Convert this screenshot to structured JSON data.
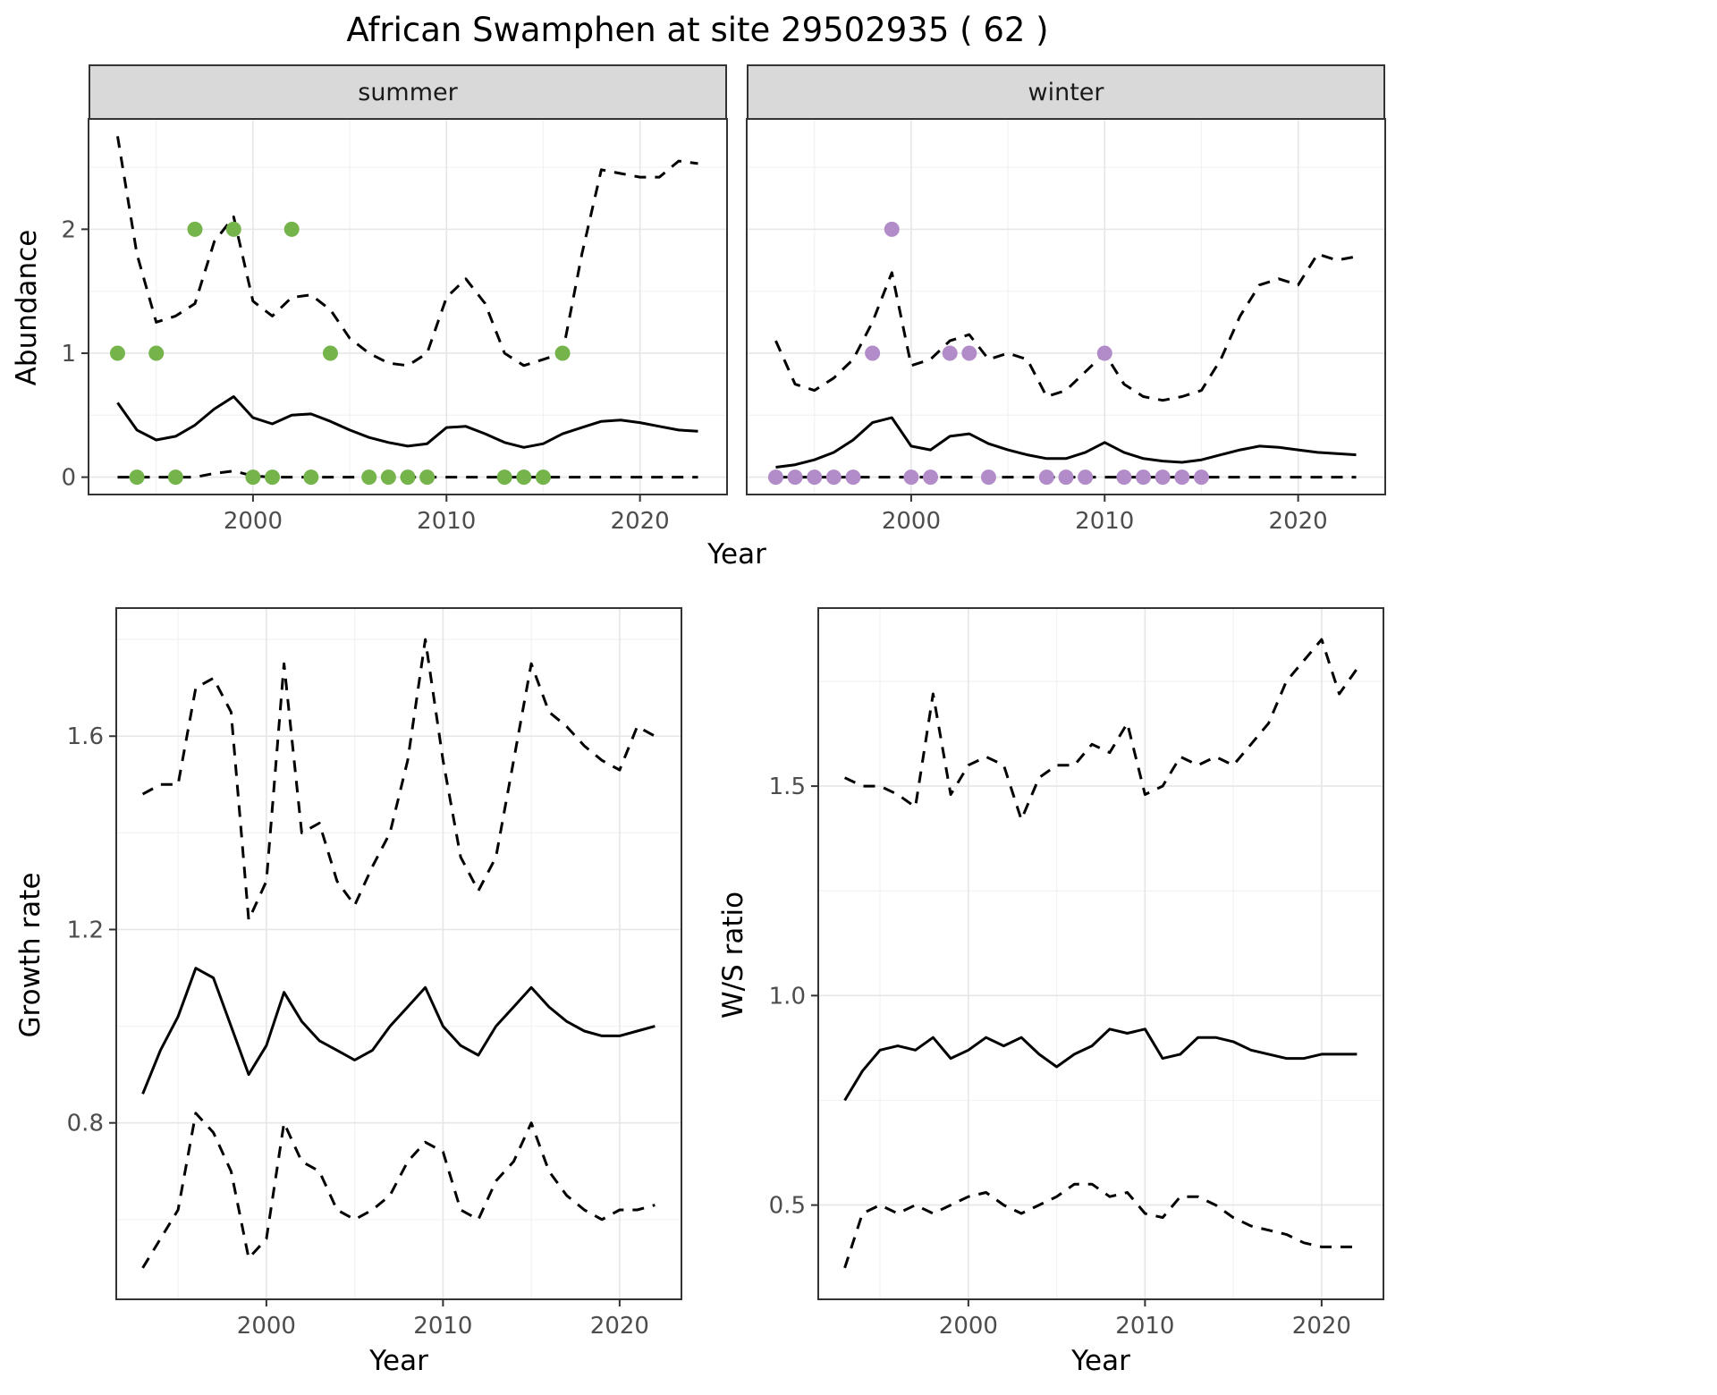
{
  "title": "African Swamphen at site 29502935 ( 62 )",
  "colors": {
    "line": "#000000",
    "summer_points": "#75b34b",
    "winter_points": "#b28bc9",
    "strip_bg": "#d9d9d9",
    "panel_border": "#333333",
    "grid_major": "#e6e6e6",
    "grid_minor": "#f2f2f2",
    "tick_text": "#4d4d4d"
  },
  "chart_data": [
    {
      "id": "abundance-summer",
      "type": "line",
      "facet_label": "summer",
      "xlabel": "Year",
      "ylabel": "Abundance",
      "xlim": [
        1991.5,
        2024.5
      ],
      "ylim": [
        -0.14,
        2.89
      ],
      "xticks": [
        2000,
        2010,
        2020
      ],
      "xtick_labels": [
        "2000",
        "2010",
        "2020"
      ],
      "xticks_minor": [
        1995,
        2005,
        2015
      ],
      "yticks": [
        0,
        1,
        2
      ],
      "ytick_labels": [
        "0",
        "1",
        "2"
      ],
      "yticks_minor": [
        0.5,
        1.5,
        2.5
      ],
      "x": [
        1993,
        1994,
        1995,
        1996,
        1997,
        1998,
        1999,
        2000,
        2001,
        2002,
        2003,
        2004,
        2005,
        2006,
        2007,
        2008,
        2009,
        2010,
        2011,
        2012,
        2013,
        2014,
        2015,
        2016,
        2017,
        2018,
        2019,
        2020,
        2021,
        2022,
        2023
      ],
      "series": [
        {
          "name": "mean",
          "linetype": "solid",
          "values": [
            0.6,
            0.38,
            0.3,
            0.33,
            0.42,
            0.55,
            0.65,
            0.48,
            0.43,
            0.5,
            0.51,
            0.45,
            0.38,
            0.32,
            0.28,
            0.25,
            0.27,
            0.4,
            0.41,
            0.35,
            0.28,
            0.24,
            0.27,
            0.35,
            0.4,
            0.45,
            0.46,
            0.44,
            0.41,
            0.38,
            0.37
          ]
        },
        {
          "name": "upper_ci",
          "linetype": "dashed",
          "values": [
            2.75,
            1.8,
            1.25,
            1.3,
            1.4,
            1.9,
            2.1,
            1.42,
            1.3,
            1.45,
            1.47,
            1.35,
            1.12,
            1.0,
            0.92,
            0.9,
            1.0,
            1.45,
            1.6,
            1.4,
            1.0,
            0.9,
            0.95,
            1.0,
            1.8,
            2.48,
            2.45,
            2.42,
            2.42,
            2.55,
            2.53
          ]
        },
        {
          "name": "lower_ci",
          "linetype": "dashed",
          "values": [
            0,
            0,
            0,
            0,
            0,
            0.03,
            0.05,
            0.01,
            0,
            0,
            0,
            0,
            0,
            0,
            0,
            0,
            0,
            0,
            0,
            0,
            0,
            0,
            0,
            0,
            0,
            0,
            0,
            0,
            0,
            0,
            0
          ]
        }
      ],
      "points": {
        "name": "observed-counts-summer",
        "color": "#75b34b",
        "x": [
          1993,
          1994,
          1995,
          1996,
          1997,
          1999,
          2000,
          2001,
          2002,
          2003,
          2004,
          2006,
          2007,
          2008,
          2009,
          2013,
          2014,
          2015,
          2016
        ],
        "y": [
          1,
          0,
          1,
          0,
          2,
          2,
          0,
          0,
          2,
          0,
          1,
          0,
          0,
          0,
          0,
          0,
          0,
          0,
          1
        ]
      }
    },
    {
      "id": "abundance-winter",
      "type": "line",
      "facet_label": "winter",
      "xlabel": "Year",
      "ylabel": "Abundance",
      "xlim": [
        1991.5,
        2024.5
      ],
      "ylim": [
        -0.14,
        2.89
      ],
      "xticks": [
        2000,
        2010,
        2020
      ],
      "xtick_labels": [
        "2000",
        "2010",
        "2020"
      ],
      "xticks_minor": [
        1995,
        2005,
        2015
      ],
      "yticks": [
        0,
        1,
        2
      ],
      "ytick_labels": [
        "0",
        "1",
        "2"
      ],
      "yticks_minor": [
        0.5,
        1.5,
        2.5
      ],
      "x": [
        1993,
        1994,
        1995,
        1996,
        1997,
        1998,
        1999,
        2000,
        2001,
        2002,
        2003,
        2004,
        2005,
        2006,
        2007,
        2008,
        2009,
        2010,
        2011,
        2012,
        2013,
        2014,
        2015,
        2016,
        2017,
        2018,
        2019,
        2020,
        2021,
        2022,
        2023
      ],
      "series": [
        {
          "name": "mean",
          "linetype": "solid",
          "values": [
            0.08,
            0.1,
            0.14,
            0.2,
            0.3,
            0.44,
            0.48,
            0.25,
            0.22,
            0.33,
            0.35,
            0.27,
            0.22,
            0.18,
            0.15,
            0.15,
            0.2,
            0.28,
            0.2,
            0.15,
            0.13,
            0.12,
            0.14,
            0.18,
            0.22,
            0.25,
            0.24,
            0.22,
            0.2,
            0.19,
            0.18
          ]
        },
        {
          "name": "upper_ci",
          "linetype": "dashed",
          "values": [
            1.1,
            0.75,
            0.7,
            0.8,
            0.95,
            1.25,
            1.65,
            0.9,
            0.95,
            1.1,
            1.15,
            0.95,
            1.0,
            0.95,
            0.65,
            0.7,
            0.85,
            1.0,
            0.75,
            0.65,
            0.62,
            0.65,
            0.7,
            0.95,
            1.3,
            1.55,
            1.6,
            1.55,
            1.8,
            1.75,
            1.78
          ]
        },
        {
          "name": "lower_ci",
          "linetype": "dashed",
          "values": [
            0,
            0,
            0,
            0,
            0,
            0,
            0,
            0,
            0,
            0,
            0,
            0,
            0,
            0,
            0,
            0,
            0,
            0,
            0,
            0,
            0,
            0,
            0,
            0,
            0,
            0,
            0,
            0,
            0,
            0,
            0
          ]
        }
      ],
      "points": {
        "name": "observed-counts-winter",
        "color": "#b28bc9",
        "x": [
          1993,
          1994,
          1995,
          1996,
          1997,
          1998,
          1999,
          2000,
          2001,
          2002,
          2003,
          2004,
          2007,
          2008,
          2009,
          2010,
          2011,
          2012,
          2013,
          2014,
          2015
        ],
        "y": [
          0,
          0,
          0,
          0,
          0,
          1,
          2,
          0,
          0,
          1,
          1,
          0,
          0,
          0,
          0,
          1,
          0,
          0,
          0,
          0,
          0
        ]
      }
    },
    {
      "id": "growth-rate",
      "type": "line",
      "xlabel": "Year",
      "ylabel": "Growth rate",
      "xlim": [
        1991.5,
        2023.5
      ],
      "ylim": [
        0.435,
        1.865
      ],
      "xticks": [
        2000,
        2010,
        2020
      ],
      "xtick_labels": [
        "2000",
        "2010",
        "2020"
      ],
      "xticks_minor": [
        1995,
        2005,
        2015
      ],
      "yticks": [
        0.8,
        1.2,
        1.6
      ],
      "ytick_labels": [
        "0.8",
        "1.2",
        "1.6"
      ],
      "yticks_minor": [
        0.6,
        1.0,
        1.4,
        1.8
      ],
      "x": [
        1993,
        1994,
        1995,
        1996,
        1997,
        1998,
        1999,
        2000,
        2001,
        2002,
        2003,
        2004,
        2005,
        2006,
        2007,
        2008,
        2009,
        2010,
        2011,
        2012,
        2013,
        2014,
        2015,
        2016,
        2017,
        2018,
        2019,
        2020,
        2021,
        2022
      ],
      "series": [
        {
          "name": "mean",
          "linetype": "solid",
          "values": [
            0.86,
            0.95,
            1.02,
            1.12,
            1.1,
            1.0,
            0.9,
            0.96,
            1.07,
            1.01,
            0.97,
            0.95,
            0.93,
            0.95,
            1.0,
            1.04,
            1.08,
            1.0,
            0.96,
            0.94,
            1.0,
            1.04,
            1.08,
            1.04,
            1.01,
            0.99,
            0.98,
            0.98,
            0.99,
            1.0
          ]
        },
        {
          "name": "upper_ci",
          "linetype": "dashed",
          "values": [
            1.48,
            1.5,
            1.5,
            1.7,
            1.72,
            1.65,
            1.22,
            1.3,
            1.75,
            1.4,
            1.42,
            1.3,
            1.25,
            1.33,
            1.4,
            1.55,
            1.8,
            1.55,
            1.35,
            1.28,
            1.35,
            1.55,
            1.75,
            1.65,
            1.62,
            1.58,
            1.55,
            1.53,
            1.62,
            1.6
          ]
        },
        {
          "name": "lower_ci",
          "linetype": "dashed",
          "values": [
            0.5,
            0.56,
            0.62,
            0.82,
            0.78,
            0.7,
            0.52,
            0.56,
            0.8,
            0.72,
            0.7,
            0.62,
            0.6,
            0.62,
            0.65,
            0.72,
            0.76,
            0.74,
            0.62,
            0.6,
            0.68,
            0.72,
            0.8,
            0.7,
            0.65,
            0.62,
            0.6,
            0.62,
            0.62,
            0.63
          ]
        }
      ]
    },
    {
      "id": "ws-ratio",
      "type": "line",
      "xlabel": "Year",
      "ylabel": "W/S ratio",
      "xlim": [
        1991.5,
        2023.5
      ],
      "ylim": [
        0.275,
        1.925
      ],
      "xticks": [
        2000,
        2010,
        2020
      ],
      "xtick_labels": [
        "2000",
        "2010",
        "2020"
      ],
      "xticks_minor": [
        1995,
        2005,
        2015
      ],
      "yticks": [
        0.5,
        1.0,
        1.5
      ],
      "ytick_labels": [
        "0.5",
        "1.0",
        "1.5"
      ],
      "yticks_minor": [
        0.75,
        1.25,
        1.75
      ],
      "x": [
        1993,
        1994,
        1995,
        1996,
        1997,
        1998,
        1999,
        2000,
        2001,
        2002,
        2003,
        2004,
        2005,
        2006,
        2007,
        2008,
        2009,
        2010,
        2011,
        2012,
        2013,
        2014,
        2015,
        2016,
        2017,
        2018,
        2019,
        2020,
        2021,
        2022
      ],
      "series": [
        {
          "name": "mean",
          "linetype": "solid",
          "values": [
            0.75,
            0.82,
            0.87,
            0.88,
            0.87,
            0.9,
            0.85,
            0.87,
            0.9,
            0.88,
            0.9,
            0.86,
            0.83,
            0.86,
            0.88,
            0.92,
            0.91,
            0.92,
            0.85,
            0.86,
            0.9,
            0.9,
            0.89,
            0.87,
            0.86,
            0.85,
            0.85,
            0.86,
            0.86,
            0.86
          ]
        },
        {
          "name": "upper_ci",
          "linetype": "dashed",
          "values": [
            1.52,
            1.5,
            1.5,
            1.48,
            1.45,
            1.72,
            1.48,
            1.55,
            1.57,
            1.55,
            1.42,
            1.52,
            1.55,
            1.55,
            1.6,
            1.58,
            1.65,
            1.48,
            1.5,
            1.57,
            1.55,
            1.57,
            1.55,
            1.6,
            1.65,
            1.75,
            1.8,
            1.85,
            1.72,
            1.78
          ]
        },
        {
          "name": "lower_ci",
          "linetype": "dashed",
          "values": [
            0.35,
            0.48,
            0.5,
            0.48,
            0.5,
            0.48,
            0.5,
            0.52,
            0.53,
            0.5,
            0.48,
            0.5,
            0.52,
            0.55,
            0.55,
            0.52,
            0.53,
            0.48,
            0.47,
            0.52,
            0.52,
            0.5,
            0.47,
            0.45,
            0.44,
            0.43,
            0.41,
            0.4,
            0.4,
            0.4
          ]
        }
      ]
    }
  ]
}
